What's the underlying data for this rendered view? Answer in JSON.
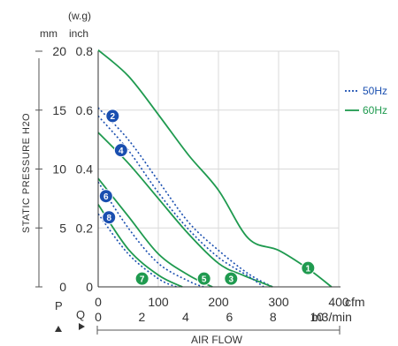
{
  "chart_data": {
    "type": "line",
    "title": "",
    "ylabel": "STATIC PRESSURE H2O",
    "xlabel": "AIR FLOW",
    "y_units": {
      "primary": "mm",
      "secondary": "inch",
      "secondary_header": "(w.g)"
    },
    "x_units": {
      "primary": "cfm",
      "secondary": "m3/min"
    },
    "xlim_cfm": [
      0,
      400
    ],
    "ylim_inch": [
      0,
      0.8
    ],
    "x_ticks_cfm": [
      "0",
      "100",
      "200",
      "300",
      "400"
    ],
    "x_ticks_m3min": [
      "0",
      "2",
      "4",
      "6",
      "8",
      "10"
    ],
    "y_ticks_mm": [
      "0",
      "5",
      "10",
      "15",
      "20"
    ],
    "y_ticks_inch": [
      "0",
      "0.2",
      "0.4",
      "0.6",
      "0.8"
    ],
    "grid": true,
    "legend_position": "right",
    "axis_markers": {
      "p": "P",
      "q": "Q"
    },
    "legend": [
      {
        "label": "50Hz",
        "style": "dotted",
        "color": "#1a4fb0"
      },
      {
        "label": "60Hz",
        "style": "solid",
        "color": "#1f9a4f"
      }
    ],
    "series": [
      {
        "name": "1",
        "hz": "60",
        "badge_at": [
          349,
          0.064
        ],
        "points": [
          [
            0,
            0.804
          ],
          [
            50,
            0.716
          ],
          [
            100,
            0.585
          ],
          [
            150,
            0.448
          ],
          [
            200,
            0.328
          ],
          [
            250,
            0.164
          ],
          [
            300,
            0.124
          ],
          [
            350,
            0.06
          ],
          [
            388,
            0.0
          ]
        ]
      },
      {
        "name": "2",
        "hz": "50",
        "badge_at": [
          24,
          0.58
        ],
        "points": [
          [
            0,
            0.608
          ],
          [
            50,
            0.5
          ],
          [
            100,
            0.36
          ],
          [
            150,
            0.22
          ],
          [
            200,
            0.124
          ],
          [
            250,
            0.044
          ],
          [
            290,
            0.0
          ]
        ]
      },
      {
        "name": "3",
        "hz": "60",
        "badge_at": [
          221,
          0.028
        ],
        "points": [
          [
            0,
            0.524
          ],
          [
            50,
            0.42
          ],
          [
            100,
            0.3
          ],
          [
            150,
            0.18
          ],
          [
            200,
            0.08
          ],
          [
            240,
            0.04
          ],
          [
            290,
            0.0
          ]
        ]
      },
      {
        "name": "4",
        "hz": "50",
        "badge_at": [
          38,
          0.464
        ],
        "points": [
          [
            0,
            0.58
          ],
          [
            50,
            0.464
          ],
          [
            100,
            0.32
          ],
          [
            150,
            0.196
          ],
          [
            200,
            0.1
          ],
          [
            250,
            0.036
          ],
          [
            275,
            0.0
          ]
        ]
      },
      {
        "name": "5",
        "hz": "60",
        "badge_at": [
          176,
          0.028
        ],
        "points": [
          [
            0,
            0.368
          ],
          [
            50,
            0.24
          ],
          [
            100,
            0.112
          ],
          [
            150,
            0.04
          ],
          [
            190,
            0.0
          ]
        ]
      },
      {
        "name": "6",
        "hz": "50",
        "badge_at": [
          13,
          0.308
        ],
        "points": [
          [
            0,
            0.356
          ],
          [
            50,
            0.2
          ],
          [
            100,
            0.08
          ],
          [
            150,
            0.02
          ],
          [
            175,
            0.0
          ]
        ]
      },
      {
        "name": "7",
        "hz": "60",
        "badge_at": [
          73,
          0.028
        ],
        "points": [
          [
            0,
            0.28
          ],
          [
            50,
            0.128
          ],
          [
            100,
            0.04
          ],
          [
            140,
            0.0
          ]
        ]
      },
      {
        "name": "8",
        "hz": "50",
        "badge_at": [
          18,
          0.236
        ],
        "points": [
          [
            0,
            0.248
          ],
          [
            50,
            0.112
          ],
          [
            100,
            0.028
          ],
          [
            130,
            0.0
          ]
        ]
      }
    ]
  }
}
